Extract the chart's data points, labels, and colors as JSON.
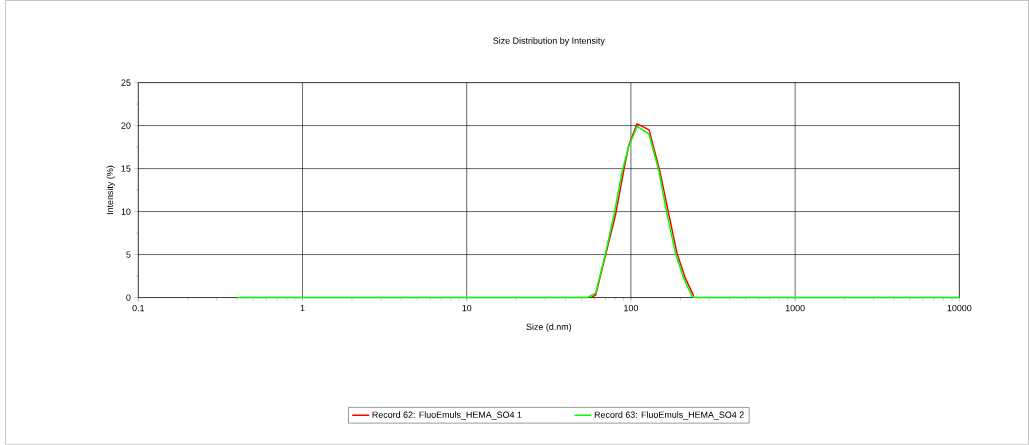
{
  "chart_data": {
    "type": "line",
    "title": "Size Distribution by Intensity",
    "xlabel": "Size (d.nm)",
    "ylabel": "Intensity (%)",
    "log": "x",
    "xlim": [
      0.1,
      10000
    ],
    "xticks": [
      0.1,
      1,
      10,
      100,
      1000,
      10000
    ],
    "ylim": [
      0,
      25
    ],
    "yticks": [
      0,
      5,
      10,
      15,
      20,
      25
    ],
    "grid": true,
    "legend": "bottom",
    "marker": "none",
    "line_style": "solid",
    "series": [
      {
        "name": "Record 62: FluoEmuls_HEMA_SO4 1",
        "color": "#ff0000",
        "x": [
          57,
          61,
          70,
          80.5,
          90,
          97,
          109,
          129,
          150,
          170,
          191,
          215,
          241
        ],
        "values": [
          0,
          0.3,
          4.9,
          9.6,
          14.6,
          17.7,
          20.2,
          19.5,
          14.7,
          9.7,
          5.1,
          2.2,
          0.2
        ]
      },
      {
        "name": "Record 63: FluoEmuls_HEMA_SO4 2",
        "color": "#00ff00",
        "x": [
          0.4,
          2,
          20,
          50,
          54,
          61,
          70,
          79,
          88.5,
          97,
          109,
          129,
          148,
          166,
          187,
          210,
          236,
          252,
          2000,
          10000
        ],
        "values": [
          0,
          0,
          0,
          0,
          0,
          0.5,
          5.1,
          9.7,
          14.7,
          17.6,
          19.9,
          19.0,
          14.7,
          9.7,
          5.1,
          2.2,
          0.1,
          0,
          0,
          0
        ]
      }
    ]
  }
}
